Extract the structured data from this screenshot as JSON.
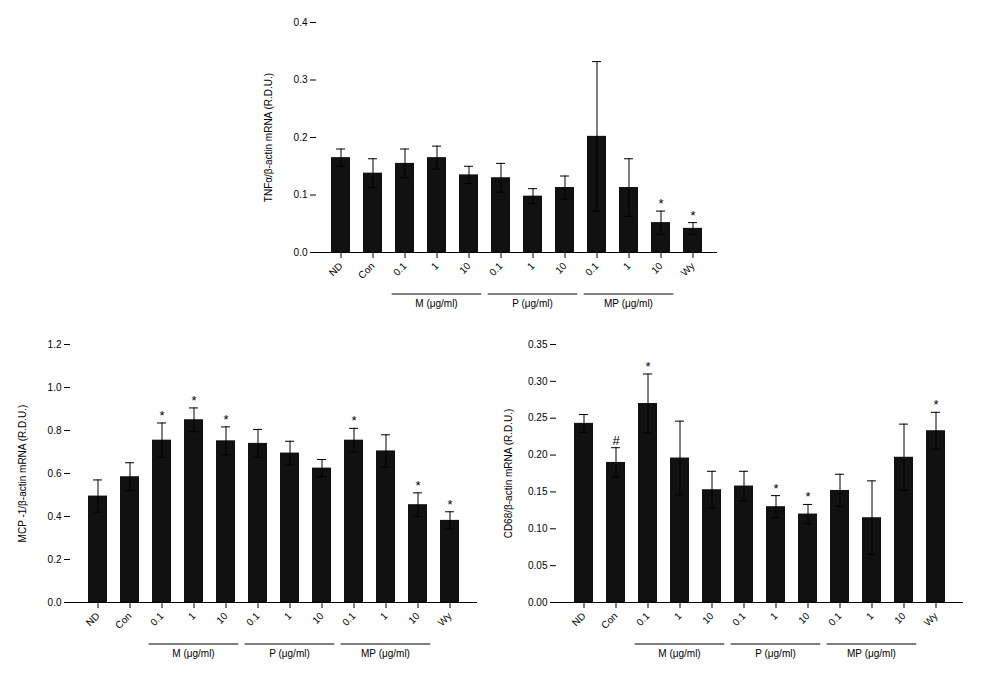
{
  "chart_data": [
    {
      "type": "bar",
      "categories": [
        "ND",
        "Con",
        "0.1",
        "1",
        "10",
        "0.1",
        "1",
        "10",
        "0.1",
        "1",
        "10",
        "Wy"
      ],
      "values": [
        0.165,
        0.138,
        0.155,
        0.165,
        0.135,
        0.13,
        0.098,
        0.113,
        0.202,
        0.113,
        0.052,
        0.042
      ],
      "errors": [
        0.015,
        0.025,
        0.025,
        0.02,
        0.015,
        0.025,
        0.013,
        0.02,
        0.13,
        0.05,
        0.02,
        0.01
      ],
      "annotations": [
        null,
        null,
        null,
        null,
        null,
        null,
        null,
        null,
        null,
        null,
        "*",
        "*"
      ],
      "groups": [
        {
          "label": "M (μg/ml)",
          "first": 2,
          "last": 4
        },
        {
          "label": "P (μg/ml)",
          "first": 5,
          "last": 7
        },
        {
          "label": "MP (μg/ml)",
          "first": 8,
          "last": 10
        }
      ],
      "color": "#111111",
      "y_label": "TNFα/β-actin mRNA (R.D.U.)",
      "ylim": [
        0,
        0.4
      ],
      "yticks": [
        {
          "value": 0,
          "label": "0.0"
        },
        0.1,
        0.2,
        0.3,
        0.4
      ]
    },
    {
      "type": "bar",
      "categories": [
        "ND",
        "Con",
        "0.1",
        "1",
        "10",
        "0.1",
        "1",
        "10",
        "0.1",
        "1",
        "10",
        "Wy"
      ],
      "values": [
        0.495,
        0.585,
        0.755,
        0.85,
        0.752,
        0.74,
        0.695,
        0.625,
        0.755,
        0.705,
        0.455,
        0.382
      ],
      "errors": [
        0.075,
        0.065,
        0.08,
        0.055,
        0.065,
        0.065,
        0.055,
        0.04,
        0.055,
        0.075,
        0.055,
        0.04
      ],
      "annotations": [
        null,
        null,
        "*",
        "*",
        "*",
        null,
        null,
        null,
        "*",
        null,
        "*",
        "*"
      ],
      "groups": [
        {
          "label": "M (μg/ml)",
          "first": 2,
          "last": 4
        },
        {
          "label": "P (μg/ml)",
          "first": 5,
          "last": 7
        },
        {
          "label": "MP (μg/ml)",
          "first": 8,
          "last": 10
        }
      ],
      "color": "#111111",
      "y_label": "MCP -1/β-actin mRNA (R.D.U.)",
      "ylim": [
        0,
        1.2
      ],
      "yticks": [
        {
          "value": 0,
          "label": "0.0"
        },
        0.2,
        0.4,
        0.6,
        0.8,
        {
          "value": 1,
          "label": "1.0"
        },
        1.2
      ]
    },
    {
      "type": "bar",
      "categories": [
        "ND",
        "Con",
        "0.1",
        "1",
        "10",
        "0.1",
        "1",
        "10",
        "0.1",
        "1",
        "10",
        "Wy"
      ],
      "values": [
        0.243,
        0.19,
        0.27,
        0.196,
        0.153,
        0.158,
        0.13,
        0.12,
        0.152,
        0.115,
        0.197,
        0.233
      ],
      "errors": [
        0.012,
        0.02,
        0.04,
        0.05,
        0.025,
        0.02,
        0.015,
        0.013,
        0.022,
        0.05,
        0.045,
        0.025
      ],
      "annotations": [
        null,
        "#",
        "*",
        null,
        null,
        null,
        "*",
        "*",
        null,
        null,
        null,
        "*"
      ],
      "groups": [
        {
          "label": "M (μg/ml)",
          "first": 2,
          "last": 4
        },
        {
          "label": "P (μg/ml)",
          "first": 5,
          "last": 7
        },
        {
          "label": "MP (μg/ml)",
          "first": 8,
          "last": 10
        }
      ],
      "color": "#111111",
      "y_label": "CD68/β-actin mRNA (R.D.U.)",
      "ylim": [
        0,
        0.35
      ],
      "yticks": [
        {
          "value": 0,
          "label": "0.00"
        },
        0.05,
        {
          "value": 0.1,
          "label": "0.10"
        },
        0.15,
        {
          "value": 0.2,
          "label": "0.20"
        },
        0.25,
        {
          "value": 0.3,
          "label": "0.30"
        },
        0.35
      ]
    }
  ]
}
